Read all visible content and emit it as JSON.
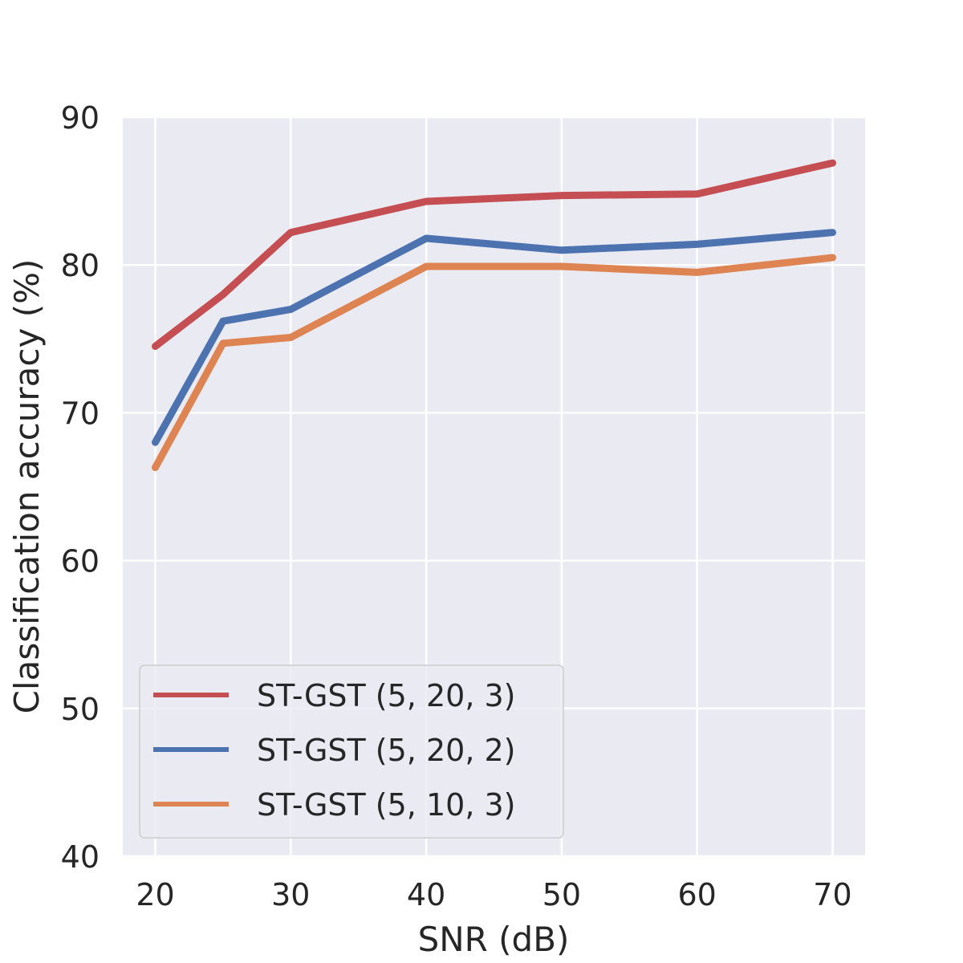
{
  "chart_data": {
    "type": "line",
    "xlabel": "SNR (dB)",
    "ylabel": "Classification accuracy (%)",
    "xlim": [
      17.6,
      72.4
    ],
    "ylim": [
      40,
      90
    ],
    "xticks": [
      20,
      30,
      40,
      50,
      60,
      70
    ],
    "yticks": [
      40,
      50,
      60,
      70,
      80,
      90
    ],
    "grid": true,
    "legend_position": "lower-left",
    "x": [
      20,
      25,
      30,
      40,
      50,
      60,
      70
    ],
    "series": [
      {
        "name": "ST-GST (5, 20, 3)",
        "color": "#c44e52",
        "values": [
          74.5,
          78.0,
          82.2,
          84.3,
          84.7,
          84.8,
          86.9
        ]
      },
      {
        "name": "ST-GST (5, 20, 2)",
        "color": "#4c72b0",
        "values": [
          68.0,
          76.2,
          77.0,
          81.8,
          81.0,
          81.4,
          82.2
        ]
      },
      {
        "name": "ST-GST (5, 10, 3)",
        "color": "#dd8452",
        "values": [
          66.3,
          74.7,
          75.1,
          79.9,
          79.9,
          79.5,
          80.5
        ]
      }
    ]
  }
}
